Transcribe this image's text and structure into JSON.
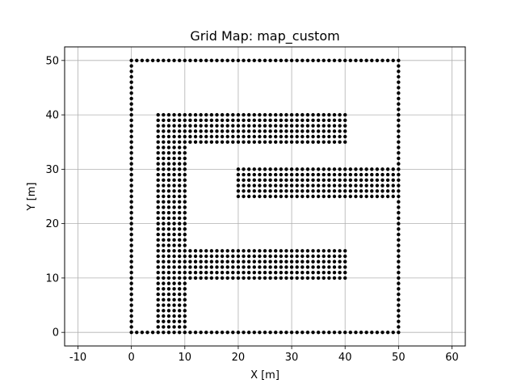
{
  "chart_data": {
    "type": "scatter",
    "title": "Grid Map: map_custom",
    "xlabel": "X [m]",
    "ylabel": "Y [m]",
    "xlim": [
      -12.5,
      62.5
    ],
    "ylim": [
      -2.5,
      52.5
    ],
    "xticks": [
      -10,
      0,
      10,
      20,
      30,
      40,
      50,
      60
    ],
    "yticks": [
      0,
      10,
      20,
      30,
      40,
      50
    ],
    "grid": true,
    "marker_color": "#000000",
    "grid_color": "#b0b0b0",
    "point_spacing": 1,
    "obstacles": [
      {
        "name": "outer-bottom-wall",
        "kind": "line",
        "x": [
          0,
          50
        ],
        "y": [
          0,
          0
        ]
      },
      {
        "name": "outer-top-wall",
        "kind": "line",
        "x": [
          0,
          50
        ],
        "y": [
          50,
          50
        ]
      },
      {
        "name": "outer-left-wall",
        "kind": "line",
        "x": [
          0,
          0
        ],
        "y": [
          0,
          50
        ]
      },
      {
        "name": "outer-right-wall",
        "kind": "line",
        "x": [
          50,
          50
        ],
        "y": [
          0,
          50
        ]
      },
      {
        "name": "vertical-block",
        "kind": "rect",
        "x": [
          5,
          10
        ],
        "y": [
          0,
          40
        ]
      },
      {
        "name": "top-arm",
        "kind": "rect",
        "x": [
          10,
          40
        ],
        "y": [
          35,
          40
        ]
      },
      {
        "name": "bottom-arm",
        "kind": "rect",
        "x": [
          10,
          40
        ],
        "y": [
          10,
          15
        ]
      },
      {
        "name": "middle-arm",
        "kind": "rect",
        "x": [
          20,
          50
        ],
        "y": [
          25,
          30
        ]
      }
    ]
  }
}
